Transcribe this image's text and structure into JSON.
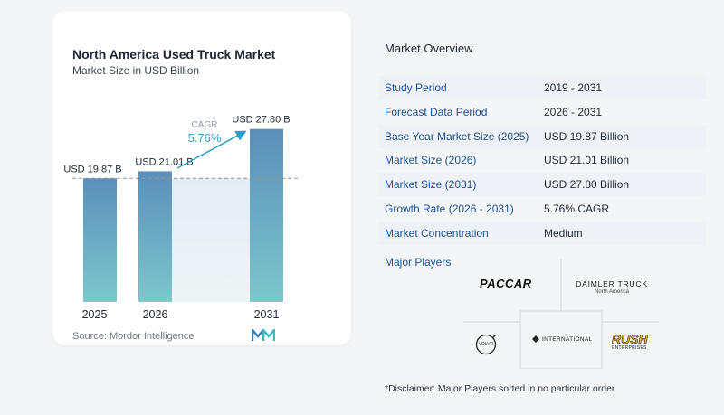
{
  "chart_data": {
    "type": "bar",
    "title": "North America Used Truck Market",
    "subtitle": "Market Size in USD Billion",
    "categories": [
      "2025",
      "2026",
      "2031"
    ],
    "values": [
      19.87,
      21.01,
      27.8
    ],
    "value_labels": [
      "USD 19.87 B",
      "USD 21.01 B",
      "USD 27.80 B"
    ],
    "cagr_label": "CAGR",
    "cagr_value": "5.76%",
    "source": "Source: Mordor Intelligence",
    "ylim": [
      0,
      30
    ],
    "colors": {
      "bar_top": "#5b8fba",
      "bar_bottom": "#7dc7cc",
      "accent": "#2c9ec9"
    }
  },
  "overview": {
    "title": "Market Overview",
    "rows": [
      {
        "label": "Study Period",
        "value": "2019 - 2031"
      },
      {
        "label": "Forecast Data Period",
        "value": "2026 - 2031"
      },
      {
        "label": "Base Year Market Size (2025)",
        "value": "USD 19.87 Billion"
      },
      {
        "label": "Market Size (2026)",
        "value": "USD 21.01 Billion"
      },
      {
        "label": "Market Size (2031)",
        "value": "USD 27.80 Billion"
      },
      {
        "label": "Growth Rate (2026 - 2031)",
        "value": "5.76% CAGR"
      },
      {
        "label": "Market Concentration",
        "value": "Medium"
      }
    ]
  },
  "players": {
    "title": "Major Players",
    "paccar": "PACCAR",
    "daimler_line1": "DAIMLER TRUCK",
    "daimler_line2": "North America",
    "volvo": "VOLVO",
    "international": "INTERNATIONAL",
    "rush_line1": "RUSH",
    "rush_line2": "ENTERPRISES"
  },
  "disclaimer": "*Disclaimer: Major Players sorted in no particular order"
}
